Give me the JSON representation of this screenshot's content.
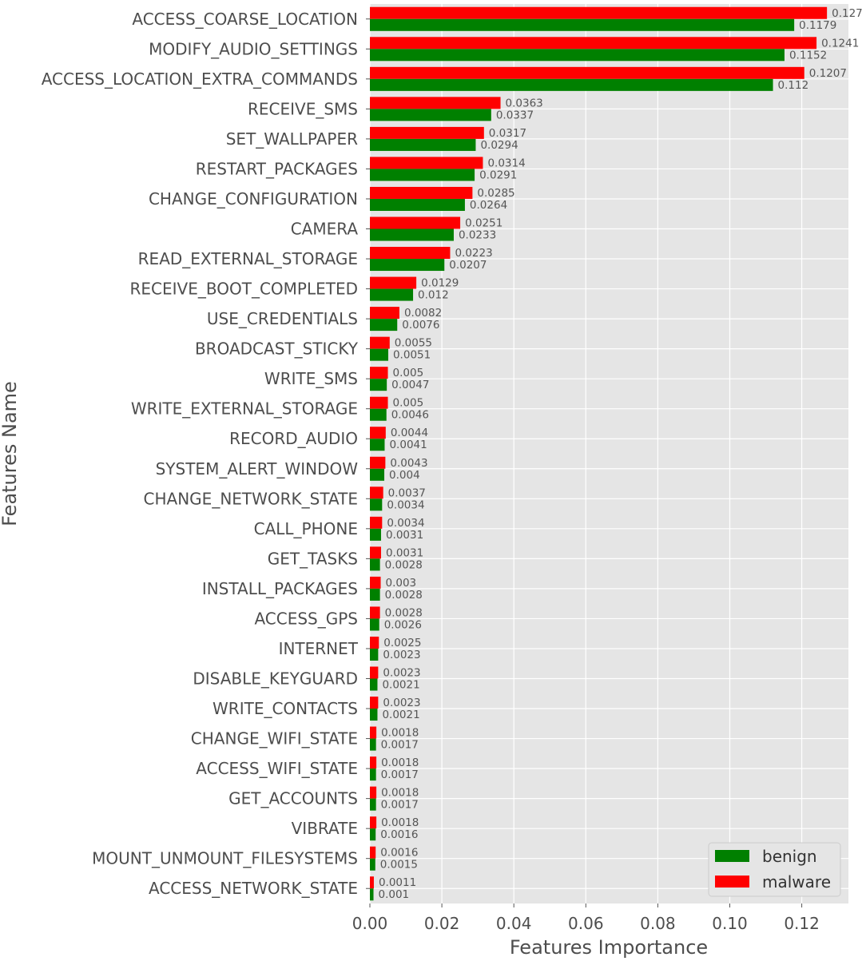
{
  "chart_data": {
    "type": "bar",
    "orientation": "horizontal",
    "title": "",
    "xlabel": "Features Importance",
    "ylabel": "Features Name",
    "xlim": [
      0,
      0.132
    ],
    "x_ticks": [
      0.0,
      0.02,
      0.04,
      0.06,
      0.08,
      0.1,
      0.12
    ],
    "x_tick_labels": [
      "0.00",
      "0.02",
      "0.04",
      "0.06",
      "0.08",
      "0.10",
      "0.12"
    ],
    "grid": true,
    "legend_position": "bottom-right",
    "categories": [
      "ACCESS_COARSE_LOCATION",
      "MODIFY_AUDIO_SETTINGS",
      "ACCESS_LOCATION_EXTRA_COMMANDS",
      "RECEIVE_SMS",
      "SET_WALLPAPER",
      "RESTART_PACKAGES",
      "CHANGE_CONFIGURATION",
      "CAMERA",
      "READ_EXTERNAL_STORAGE",
      "RECEIVE_BOOT_COMPLETED",
      "USE_CREDENTIALS",
      "BROADCAST_STICKY",
      "WRITE_SMS",
      "WRITE_EXTERNAL_STORAGE",
      "RECORD_AUDIO",
      "SYSTEM_ALERT_WINDOW",
      "CHANGE_NETWORK_STATE",
      "CALL_PHONE",
      "GET_TASKS",
      "INSTALL_PACKAGES",
      "ACCESS_GPS",
      "INTERNET",
      "DISABLE_KEYGUARD",
      "WRITE_CONTACTS",
      "CHANGE_WIFI_STATE",
      "ACCESS_WIFI_STATE",
      "GET_ACCOUNTS",
      "VIBRATE",
      "MOUNT_UNMOUNT_FILESYSTEMS",
      "ACCESS_NETWORK_STATE"
    ],
    "series": [
      {
        "name": "malware",
        "color": "#ff0000",
        "values": [
          0.127,
          0.1241,
          0.1207,
          0.0363,
          0.0317,
          0.0314,
          0.0285,
          0.0251,
          0.0223,
          0.0129,
          0.0082,
          0.0055,
          0.005,
          0.005,
          0.0044,
          0.0043,
          0.0037,
          0.0034,
          0.0031,
          0.003,
          0.0028,
          0.0025,
          0.0023,
          0.0023,
          0.0018,
          0.0018,
          0.0018,
          0.0018,
          0.0016,
          0.0011
        ],
        "labels": [
          "0.127",
          "0.1241",
          "0.1207",
          "0.0363",
          "0.0317",
          "0.0314",
          "0.0285",
          "0.0251",
          "0.0223",
          "0.0129",
          "0.0082",
          "0.0055",
          "0.005",
          "0.005",
          "0.0044",
          "0.0043",
          "0.0037",
          "0.0034",
          "0.0031",
          "0.003",
          "0.0028",
          "0.0025",
          "0.0023",
          "0.0023",
          "0.0018",
          "0.0018",
          "0.0018",
          "0.0018",
          "0.0016",
          "0.0011"
        ]
      },
      {
        "name": "benign",
        "color": "#008000",
        "values": [
          0.1179,
          0.1152,
          0.112,
          0.0337,
          0.0294,
          0.0291,
          0.0264,
          0.0233,
          0.0207,
          0.012,
          0.0076,
          0.0051,
          0.0047,
          0.0046,
          0.0041,
          0.004,
          0.0034,
          0.0031,
          0.0028,
          0.0028,
          0.0026,
          0.0023,
          0.0021,
          0.0021,
          0.0017,
          0.0017,
          0.0017,
          0.0016,
          0.0015,
          0.001
        ],
        "labels": [
          "0.1179",
          "0.1152",
          "0.112",
          "0.0337",
          "0.0294",
          "0.0291",
          "0.0264",
          "0.0233",
          "0.0207",
          "0.012",
          "0.0076",
          "0.0051",
          "0.0047",
          "0.0046",
          "0.0041",
          "0.004",
          "0.0034",
          "0.0031",
          "0.0028",
          "0.0028",
          "0.0026",
          "0.0023",
          "0.0021",
          "0.0021",
          "0.0017",
          "0.0017",
          "0.0017",
          "0.0016",
          "0.0015",
          "0.001"
        ]
      }
    ],
    "legend": [
      {
        "name": "benign",
        "color": "#008000"
      },
      {
        "name": "malware",
        "color": "#ff0000"
      }
    ]
  }
}
